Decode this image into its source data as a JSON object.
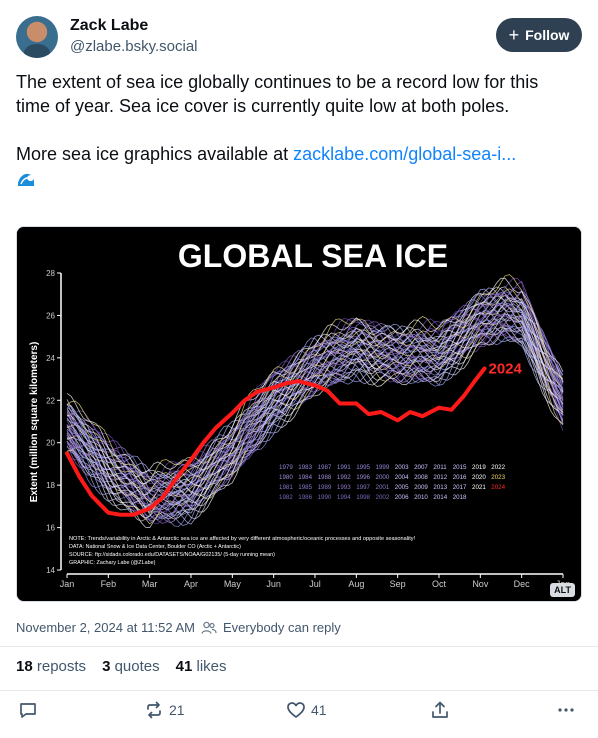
{
  "author": {
    "name": "Zack Labe",
    "handle": "@zlabe.bsky.social"
  },
  "follow_label": "Follow",
  "post": {
    "paragraph1": "The extent of sea ice globally continues to be a record low for this time of year. Sea ice cover is currently quite low at both poles.",
    "paragraph2_prefix": "More sea ice graphics available at ",
    "link_text": "zacklabe.com/global-sea-i..."
  },
  "image": {
    "alt_badge": "ALT"
  },
  "chart_data": {
    "type": "line",
    "title": "GLOBAL SEA ICE",
    "ylabel": "Extent (million square kilometers)",
    "xlabel": "",
    "x_ticks": [
      "Jan",
      "Feb",
      "Mar",
      "Apr",
      "May",
      "Jun",
      "Jul",
      "Aug",
      "Sep",
      "Oct",
      "Nov",
      "Dec",
      "Jan"
    ],
    "y_ticks": [
      14,
      16,
      18,
      20,
      22,
      24,
      26,
      28
    ],
    "ylim": [
      14,
      28
    ],
    "series_2024": {
      "name": "2024",
      "months": [
        0,
        0.3,
        0.6,
        1.0,
        1.3,
        1.6,
        2.0,
        2.3,
        2.6,
        3.0,
        3.3,
        3.6,
        4.0,
        4.3,
        4.6,
        5.0,
        5.3,
        5.6,
        6.0,
        6.3,
        6.6,
        7.0,
        7.3,
        7.6,
        8.0,
        8.3,
        8.6,
        9.0,
        9.3,
        9.6,
        9.9,
        10.1
      ],
      "values": [
        19.5,
        18.4,
        17.5,
        16.7,
        16.6,
        16.6,
        16.9,
        17.4,
        18.2,
        19.2,
        20.0,
        20.7,
        21.4,
        22.0,
        22.4,
        22.6,
        22.8,
        22.9,
        22.7,
        22.3,
        22.0,
        21.7,
        21.5,
        21.3,
        21.2,
        21.3,
        21.4,
        21.5,
        21.7,
        22.2,
        23.0,
        23.5
      ]
    },
    "legend_years": [
      [
        "1979",
        "1983",
        "1987",
        "1991",
        "1995",
        "1999",
        "2003",
        "2007",
        "2011",
        "2015",
        "2019",
        "2022"
      ],
      [
        "1980",
        "1984",
        "1988",
        "1992",
        "1996",
        "2000",
        "2004",
        "2008",
        "2012",
        "2016",
        "2020",
        "2023"
      ],
      [
        "1981",
        "1985",
        "1989",
        "1993",
        "1997",
        "2001",
        "2005",
        "2009",
        "2013",
        "2017",
        "2021",
        "2024"
      ],
      [
        "1982",
        "1986",
        "1990",
        "1994",
        "1998",
        "2002",
        "2006",
        "2010",
        "2014",
        "2018"
      ]
    ],
    "notes": [
      "NOTE: Trends/variability in Arctic & Antarctic sea ice are affected by very different atmospheric/oceanic processes and opposite seasonality!",
      "DATA: National Snow & Ice Data Center, Boulder CO (Arctic + Antarctic)",
      "SOURCE: ftp://sidads.colorado.edu/DATASETS/NOAA/G02135/ (5-day running mean)",
      "GRAPHIC: Zachary Labe (@ZLabe)"
    ],
    "label_2024": "2024"
  },
  "meta": {
    "date": "November 2, 2024 at 11:52 AM",
    "reply_setting": "Everybody can reply"
  },
  "stats": {
    "reposts_count": "18",
    "reposts_label": "reposts",
    "quotes_count": "3",
    "quotes_label": "quotes",
    "likes_count": "41",
    "likes_label": "likes"
  },
  "actions": {
    "repost_count": "21",
    "like_count": "41"
  },
  "colors": {
    "accent_link": "#1083fe",
    "follow_bg": "#2e4052",
    "record_line": "#ff1a1a"
  }
}
